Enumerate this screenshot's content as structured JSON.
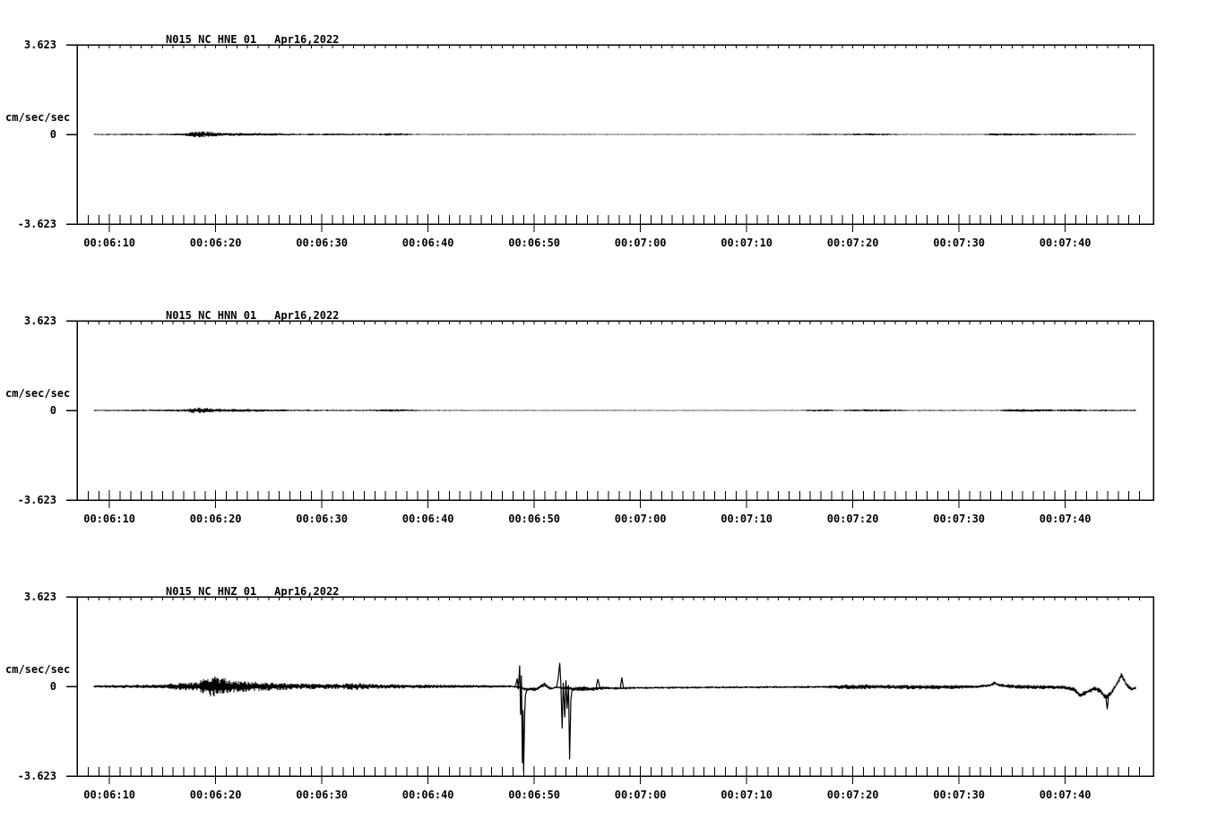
{
  "page": {
    "background": "#ffffff",
    "ink": "#000000"
  },
  "chart_data": {
    "type": "line",
    "kind": "seismogram-3-component-acceleration",
    "date": "Apr16,2022",
    "xticks": [
      "00:06:10",
      "00:06:20",
      "00:06:30",
      "00:06:40",
      "00:06:50",
      "00:07:00",
      "00:07:10",
      "00:07:20",
      "00:07:30",
      "00:07:40"
    ],
    "x_axis": {
      "start_time": "00:06:07",
      "end_time": "00:07:48",
      "duration_sec": 101.35,
      "first_major_offset_sec": 3.05,
      "major_interval_sec": 10,
      "minor_interval_sec": 1
    },
    "y_axis": {
      "min": -3.623,
      "max": 3.623,
      "units": "cm/sec/sec",
      "tick_labels": {
        "top": "3.623",
        "zero": "0",
        "bottom": "-3.623"
      }
    },
    "panels": [
      {
        "title": "N015_NC_HNE_01",
        "date": "Apr16,2022",
        "channel": "HNE",
        "trace": {
          "start_sec": 1.6,
          "end_sec": 99.7,
          "envelope": [
            [
              1.6,
              0.025,
              0
            ],
            [
              8.5,
              0.03,
              0
            ],
            [
              10.2,
              0.05,
              0
            ],
            [
              11,
              0.13,
              0
            ],
            [
              12.6,
              0.12,
              0
            ],
            [
              13.6,
              0.07,
              0
            ],
            [
              16,
              0.06,
              0
            ],
            [
              18.6,
              0.05,
              0
            ],
            [
              21,
              0.035,
              0
            ],
            [
              26,
              0.04,
              0
            ],
            [
              28.2,
              0.03,
              0
            ],
            [
              29,
              0.05,
              0
            ],
            [
              30.8,
              0.045,
              0
            ],
            [
              31.8,
              0.022,
              0
            ],
            [
              40,
              0.02,
              0
            ],
            [
              55,
              0.018,
              0
            ],
            [
              68.5,
              0.018,
              0
            ],
            [
              69.6,
              0.04,
              0
            ],
            [
              70.8,
              0.035,
              0
            ],
            [
              72,
              0.02,
              0
            ],
            [
              73.8,
              0.045,
              0
            ],
            [
              76.3,
              0.04,
              0
            ],
            [
              77.5,
              0.02,
              0
            ],
            [
              85.3,
              0.02,
              0
            ],
            [
              86.3,
              0.05,
              0
            ],
            [
              88.5,
              0.045,
              0
            ],
            [
              90.2,
              0.04,
              0
            ],
            [
              91.2,
              0.025,
              0
            ],
            [
              93.6,
              0.05,
              0
            ],
            [
              95.6,
              0.045,
              0
            ],
            [
              96.8,
              0.028,
              0
            ],
            [
              99.7,
              0.025,
              0
            ]
          ],
          "events": []
        }
      },
      {
        "title": "N015_NC_HNN_01",
        "date": "Apr16,2022",
        "channel": "HNN",
        "trace": {
          "start_sec": 1.6,
          "end_sec": 99.7,
          "envelope": [
            [
              1.6,
              0.025,
              0
            ],
            [
              8,
              0.04,
              0
            ],
            [
              10.3,
              0.06,
              0
            ],
            [
              11,
              0.13,
              0
            ],
            [
              12.4,
              0.11,
              0
            ],
            [
              13.2,
              0.07,
              0
            ],
            [
              15.5,
              0.06,
              0
            ],
            [
              18.6,
              0.05,
              0
            ],
            [
              20.5,
              0.035,
              0
            ],
            [
              27.6,
              0.03,
              0
            ],
            [
              28.9,
              0.05,
              0
            ],
            [
              31,
              0.045,
              0
            ],
            [
              32.2,
              0.022,
              0
            ],
            [
              45,
              0.018,
              0
            ],
            [
              68,
              0.018,
              0
            ],
            [
              69.4,
              0.045,
              0
            ],
            [
              70.8,
              0.04,
              0
            ],
            [
              71.8,
              0.02,
              0
            ],
            [
              74.5,
              0.05,
              0
            ],
            [
              76.9,
              0.045,
              0
            ],
            [
              78.2,
              0.02,
              0
            ],
            [
              86.8,
              0.022,
              0
            ],
            [
              87.9,
              0.06,
              0
            ],
            [
              90.6,
              0.05,
              0
            ],
            [
              92,
              0.038,
              0
            ],
            [
              94.2,
              0.05,
              0
            ],
            [
              95.3,
              0.03,
              0
            ],
            [
              96.8,
              0.04,
              0
            ],
            [
              98,
              0.028,
              0
            ],
            [
              99.7,
              0.028,
              0
            ]
          ],
          "events": []
        }
      },
      {
        "title": "N015_NC_HNZ_01",
        "date": "Apr16,2022",
        "channel": "HNZ",
        "trace": {
          "start_sec": 1.6,
          "end_sec": 99.7,
          "envelope": [
            [
              1.6,
              0.06,
              0
            ],
            [
              8,
              0.08,
              0
            ],
            [
              9.3,
              0.15,
              0
            ],
            [
              11.3,
              0.17,
              0
            ],
            [
              11.9,
              0.32,
              0
            ],
            [
              12.4,
              0.42,
              0
            ],
            [
              13.4,
              0.4,
              0
            ],
            [
              14.6,
              0.26,
              0
            ],
            [
              17,
              0.19,
              0
            ],
            [
              20.5,
              0.13,
              0
            ],
            [
              24,
              0.1,
              0
            ],
            [
              26.3,
              0.15,
              0
            ],
            [
              28,
              0.1,
              0
            ],
            [
              32,
              0.08,
              0
            ],
            [
              38,
              0.06,
              0
            ],
            [
              41.2,
              0.05,
              0
            ],
            [
              42.4,
              0.08,
              -0.12
            ],
            [
              43.2,
              0.08,
              -0.12
            ],
            [
              44,
              0.09,
              0.08
            ],
            [
              44.6,
              0.07,
              -0.1
            ],
            [
              45.1,
              0.05,
              -0.03
            ],
            [
              46.7,
              0.08,
              -0.1
            ],
            [
              47.5,
              0.1,
              -0.1
            ],
            [
              48.6,
              0.08,
              -0.1
            ],
            [
              49.6,
              0.07,
              -0.06
            ],
            [
              50.8,
              0.06,
              -0.08
            ],
            [
              52.5,
              0.05,
              -0.06
            ],
            [
              56,
              0.045,
              -0.05
            ],
            [
              60,
              0.045,
              -0.04
            ],
            [
              65,
              0.045,
              -0.03
            ],
            [
              70.5,
              0.05,
              -0.02
            ],
            [
              72.2,
              0.1,
              -0.02
            ],
            [
              74,
              0.11,
              -0.02
            ],
            [
              75.3,
              0.07,
              -0.01
            ],
            [
              76.5,
              0.09,
              -0.02
            ],
            [
              79.5,
              0.1,
              -0.03
            ],
            [
              82.5,
              0.09,
              -0.02
            ],
            [
              84.8,
              0.06,
              -0.01
            ],
            [
              86,
              0.06,
              0.05
            ],
            [
              86.4,
              0.08,
              0.14
            ],
            [
              86.9,
              0.07,
              0.04
            ],
            [
              88.5,
              0.09,
              -0.02
            ],
            [
              90.5,
              0.09,
              -0.03
            ],
            [
              93,
              0.08,
              -0.04
            ],
            [
              93.9,
              0.09,
              -0.12
            ],
            [
              94.5,
              0.11,
              -0.38
            ],
            [
              95.1,
              0.1,
              -0.22
            ],
            [
              95.8,
              0.1,
              -0.08
            ],
            [
              96.3,
              0.1,
              -0.18
            ],
            [
              96.9,
              0.1,
              -0.45
            ],
            [
              97.4,
              0.1,
              -0.25
            ],
            [
              97.9,
              0.1,
              0.1
            ],
            [
              98.35,
              0.13,
              0.45
            ],
            [
              98.8,
              0.1,
              0.08
            ],
            [
              99.3,
              0.08,
              -0.12
            ],
            [
              99.7,
              0.06,
              -0.06
            ]
          ],
          "events": [
            [
              [
                41.3,
                0.05
              ],
              [
                41.45,
                0.32
              ],
              [
                41.55,
                -0.12
              ],
              [
                41.68,
                0.85
              ],
              [
                41.76,
                -1.15
              ],
              [
                41.84,
                0.45
              ],
              [
                41.93,
                -3.1
              ],
              [
                41.99,
                -0.95
              ],
              [
                42.05,
                -3.45
              ],
              [
                42.14,
                -1.2
              ],
              [
                42.22,
                -0.35
              ],
              [
                42.35,
                -0.15
              ]
            ],
            [
              [
                45.15,
                -0.02
              ],
              [
                45.3,
                0.3
              ],
              [
                45.45,
                0.95
              ],
              [
                45.55,
                0.15
              ],
              [
                45.68,
                -1.7
              ],
              [
                45.78,
                0.15
              ],
              [
                45.92,
                -1.25
              ],
              [
                46.03,
                0.25
              ],
              [
                46.14,
                -0.9
              ],
              [
                46.28,
                0.05
              ],
              [
                46.38,
                -2.95
              ],
              [
                46.5,
                -0.55
              ],
              [
                46.62,
                -0.12
              ]
            ],
            [
              [
                48.85,
                -0.08
              ],
              [
                49.05,
                0.3
              ],
              [
                49.25,
                -0.08
              ]
            ],
            [
              [
                51.15,
                -0.06
              ],
              [
                51.3,
                0.36
              ],
              [
                51.45,
                -0.08
              ]
            ],
            [
              [
                96.85,
                -0.35
              ],
              [
                97.0,
                -0.92
              ],
              [
                97.15,
                -0.3
              ]
            ]
          ]
        }
      }
    ]
  }
}
